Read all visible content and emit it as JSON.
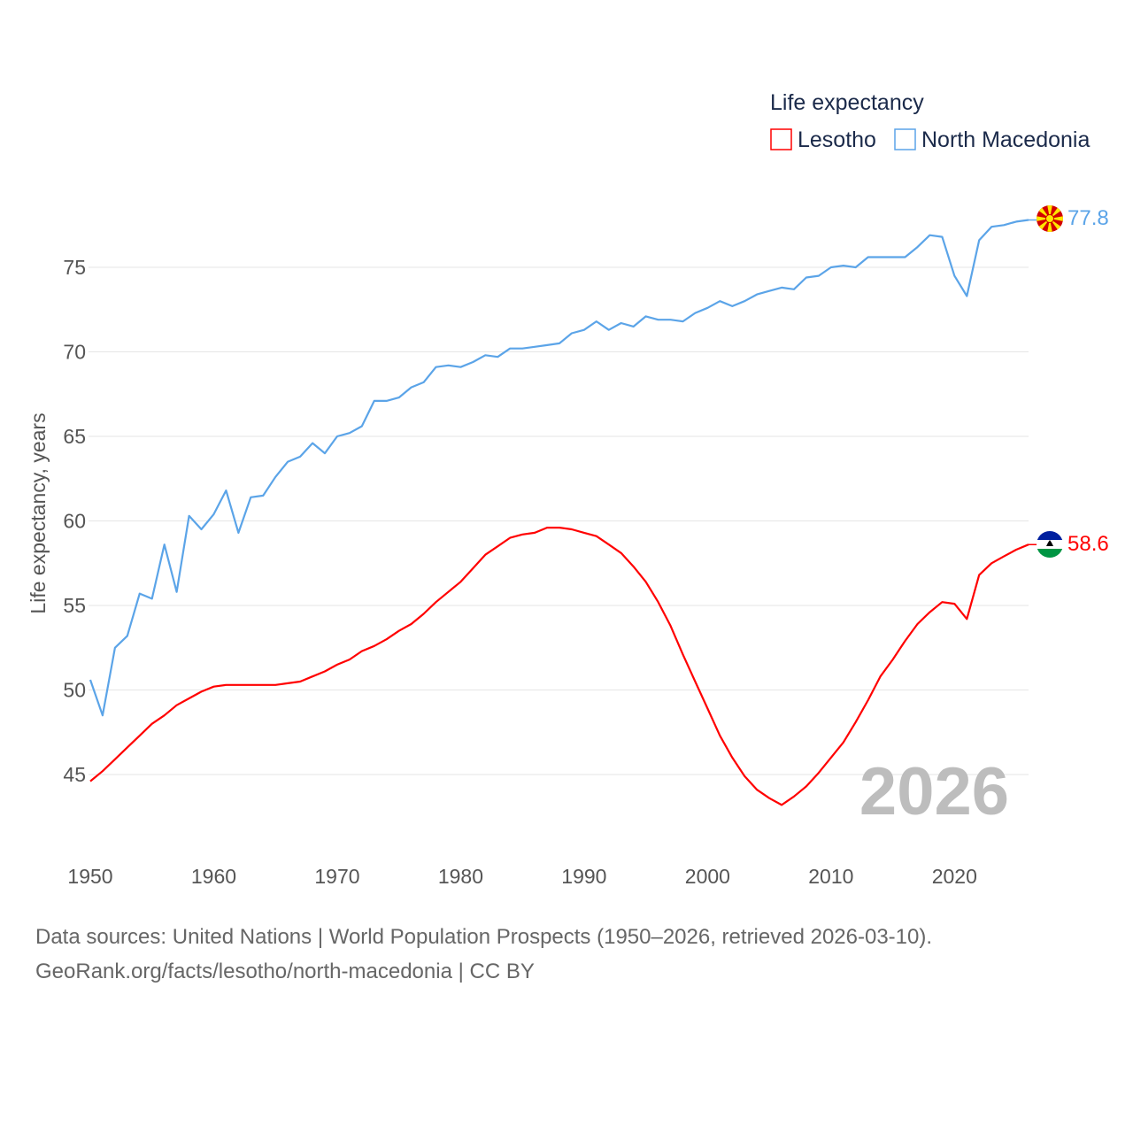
{
  "chart_data": {
    "type": "line",
    "title": "",
    "xlabel": "",
    "ylabel": "Life expectancy, years",
    "xlim": [
      1950,
      2026
    ],
    "ylim": [
      42,
      79
    ],
    "yticks": [
      45,
      50,
      55,
      60,
      65,
      70,
      75
    ],
    "xticks": [
      1950,
      1960,
      1970,
      1980,
      1990,
      2000,
      2010,
      2020
    ],
    "grid": true,
    "legend": {
      "title": "Life expectancy",
      "placement": "top-right"
    },
    "current_year_label": "2026",
    "x": [
      1950,
      1951,
      1952,
      1953,
      1954,
      1955,
      1956,
      1957,
      1958,
      1959,
      1960,
      1961,
      1962,
      1963,
      1964,
      1965,
      1966,
      1967,
      1968,
      1969,
      1970,
      1971,
      1972,
      1973,
      1974,
      1975,
      1976,
      1977,
      1978,
      1979,
      1980,
      1981,
      1982,
      1983,
      1984,
      1985,
      1986,
      1987,
      1988,
      1989,
      1990,
      1991,
      1992,
      1993,
      1994,
      1995,
      1996,
      1997,
      1998,
      1999,
      2000,
      2001,
      2002,
      2003,
      2004,
      2005,
      2006,
      2007,
      2008,
      2009,
      2010,
      2011,
      2012,
      2013,
      2014,
      2015,
      2016,
      2017,
      2018,
      2019,
      2020,
      2021,
      2022,
      2023,
      2024,
      2025,
      2026
    ],
    "series": [
      {
        "name": "Lesotho",
        "color": "#ff0000",
        "end_label": "58.6",
        "flag": "lesotho-flag",
        "values": [
          44.6,
          45.2,
          45.9,
          46.6,
          47.3,
          48.0,
          48.5,
          49.1,
          49.5,
          49.9,
          50.2,
          50.3,
          50.3,
          50.3,
          50.3,
          50.3,
          50.4,
          50.5,
          50.8,
          51.1,
          51.5,
          51.8,
          52.3,
          52.6,
          53.0,
          53.5,
          53.9,
          54.5,
          55.2,
          55.8,
          56.4,
          57.2,
          58.0,
          58.5,
          59.0,
          59.2,
          59.3,
          59.6,
          59.6,
          59.5,
          59.3,
          59.1,
          58.6,
          58.1,
          57.3,
          56.4,
          55.2,
          53.8,
          52.1,
          50.5,
          48.9,
          47.3,
          46.0,
          44.9,
          44.1,
          43.6,
          43.2,
          43.7,
          44.3,
          45.1,
          46.0,
          46.9,
          48.1,
          49.4,
          50.8,
          51.8,
          52.9,
          53.9,
          54.6,
          55.2,
          55.1,
          54.2,
          56.8,
          57.5,
          57.9,
          58.3,
          58.6
        ]
      },
      {
        "name": "North Macedonia",
        "color": "#5ba4e8",
        "end_label": "77.8",
        "flag": "north-macedonia-flag",
        "values": [
          50.6,
          48.5,
          52.5,
          53.2,
          55.7,
          55.4,
          58.6,
          55.8,
          60.3,
          59.5,
          60.4,
          61.8,
          59.3,
          61.4,
          61.5,
          62.6,
          63.5,
          63.8,
          64.6,
          64.0,
          65.0,
          65.2,
          65.6,
          67.1,
          67.1,
          67.3,
          67.9,
          68.2,
          69.1,
          69.2,
          69.1,
          69.4,
          69.8,
          69.7,
          70.2,
          70.2,
          70.3,
          70.4,
          70.5,
          71.1,
          71.3,
          71.8,
          71.3,
          71.7,
          71.5,
          72.1,
          71.9,
          71.9,
          71.8,
          72.3,
          72.6,
          73.0,
          72.7,
          73.0,
          73.4,
          73.6,
          73.8,
          73.7,
          74.4,
          74.5,
          75.0,
          75.1,
          75.0,
          75.6,
          75.6,
          75.6,
          75.6,
          76.2,
          76.9,
          76.8,
          74.5,
          73.3,
          76.6,
          77.4,
          77.5,
          77.7,
          77.8
        ]
      }
    ]
  },
  "footer": {
    "line1": "Data sources: United Nations | World Population Prospects (1950–2026, retrieved 2026-03-10).",
    "line2": "GeoRank.org/facts/lesotho/north-macedonia | CC BY"
  }
}
